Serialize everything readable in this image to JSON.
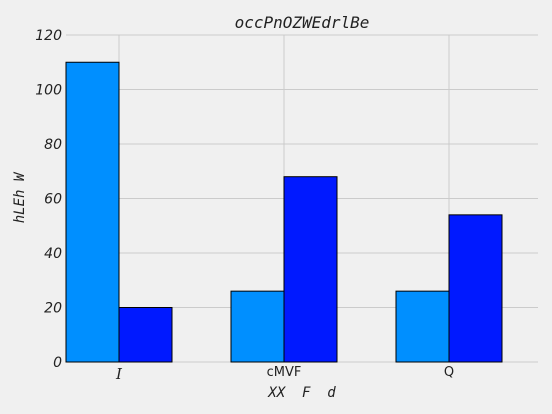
{
  "chart_data": {
    "type": "bar",
    "title": "occPnOZWEdrlBe",
    "xlabel": "XX  F  d",
    "ylabel": "hLEh W",
    "categories": [
      "I",
      "cMVF",
      "Q"
    ],
    "series": [
      {
        "values": [
          110,
          26,
          26
        ],
        "color": "#008fff"
      },
      {
        "values": [
          20,
          68,
          54
        ],
        "color": "#0019ff"
      }
    ],
    "ylim": [
      0,
      120
    ],
    "yticks": [
      0,
      20,
      40,
      60,
      80,
      100,
      120
    ],
    "grid": true,
    "background": "#f0f0f0"
  }
}
